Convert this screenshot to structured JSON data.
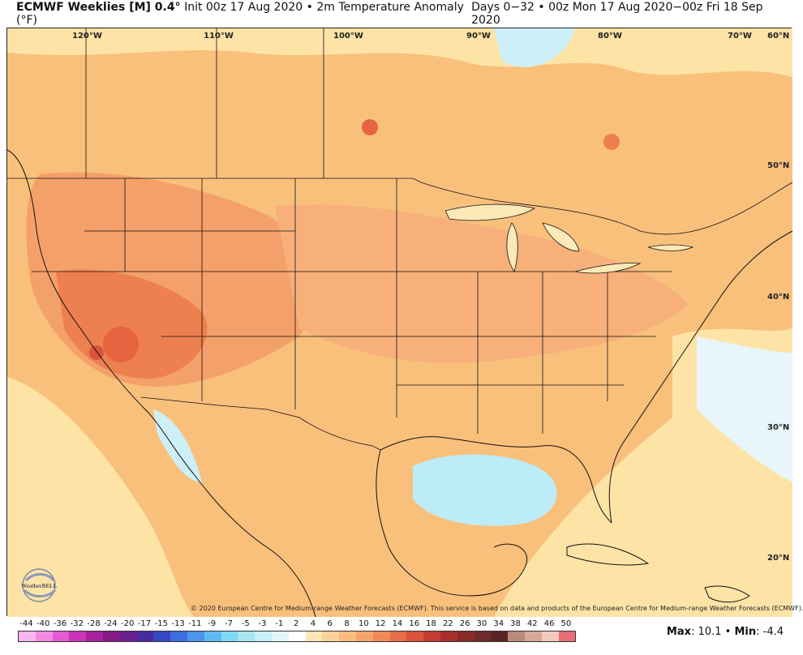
{
  "header": {
    "title": "ECMWF Weeklies [M] 0.4°",
    "subtitle": "Init 00z 17 Aug 2020 • 2m Temperature Anomaly (°F)",
    "period": "Days 0−32 • 00z Mon 17 Aug 2020−00z Fri 18 Sep 2020"
  },
  "map": {
    "lon_labels": [
      "120°W",
      "110°W",
      "100°W",
      "90°W",
      "80°W",
      "70°W"
    ],
    "lat_labels": [
      "60°N",
      "50°N",
      "40°N",
      "30°N",
      "20°N"
    ],
    "copyright": "© 2020 European Centre for Medium-range Weather Forecasts (ECMWF). This service is based on data and products of the European Centre for Medium-range Weather Forecasts (ECMWF).",
    "logo_text": "WeatherBELL"
  },
  "colorbar": {
    "labels": [
      "-44",
      "-40",
      "-36",
      "-32",
      "-28",
      "-24",
      "-20",
      "-17",
      "-15",
      "-13",
      "-11",
      "-9",
      "-7",
      "-5",
      "-3",
      "-1",
      "2",
      "4",
      "6",
      "8",
      "10",
      "12",
      "14",
      "16",
      "18",
      "22",
      "26",
      "30",
      "34",
      "38",
      "42",
      "46",
      "50"
    ],
    "colors": [
      "#f9b5ee",
      "#f08be0",
      "#e55cd2",
      "#cc33bb",
      "#a8229e",
      "#861a86",
      "#6b1f8e",
      "#4b2aa0",
      "#3448c2",
      "#3f6ddd",
      "#4c95ea",
      "#5dbbf2",
      "#7fd8f4",
      "#a6e6ee",
      "#c4f0f6",
      "#e3f7fb",
      "#ffffff",
      "#fde7b7",
      "#fcd29a",
      "#f9bc7f",
      "#f6a46a",
      "#f18a58",
      "#e86e4a",
      "#d9533d",
      "#c43c33",
      "#a8302c",
      "#8a2b2b",
      "#6f2a2a",
      "#5c2323",
      "#b88a7a",
      "#d6a99a",
      "#f2c9bd",
      "#e96d74"
    ]
  },
  "stats": {
    "max_label": "Max",
    "max_value": "10.1",
    "min_label": "Min",
    "min_value": "-4.4",
    "separator": "•"
  },
  "chart_data": {
    "type": "heatmap",
    "title": "ECMWF Weeklies [M] 0.4° Init 00z 17 Aug 2020 • 2m Temperature Anomaly (°F)",
    "period": "Days 0−32 • 00z Mon 17 Aug 2020−00z Fri 18 Sep 2020",
    "max": 10.1,
    "min": -4.4
  }
}
